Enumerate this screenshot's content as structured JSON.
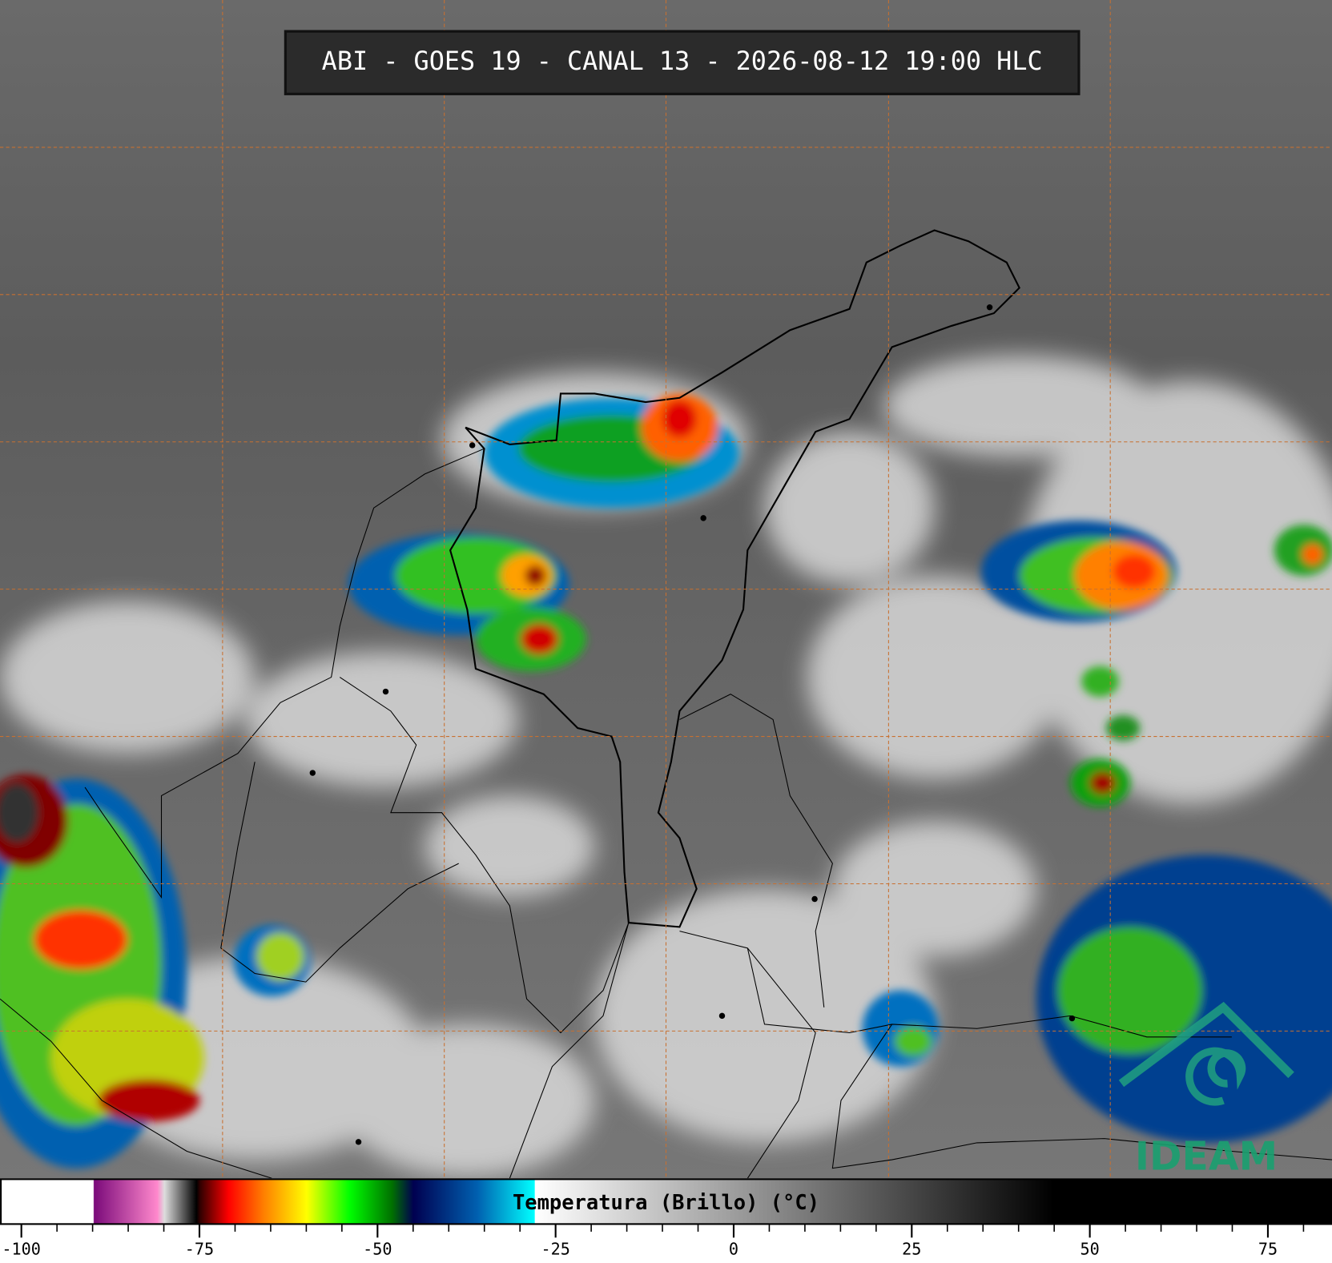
{
  "chart_data": {
    "type": "colorbar",
    "title": "ABI - GOES 19 - CANAL 13 - 2026-08-12 19:00 HLC",
    "colorbar_label": "Temperatura (Brillo) (°C)",
    "logo": "IDEAM",
    "xlim": [
      -103,
      84
    ],
    "xticks": [
      -100,
      -75,
      -50,
      -25,
      0,
      25,
      50,
      75
    ],
    "minor_xticks": [
      -95,
      -90,
      -85,
      -80,
      -70,
      -65,
      -60,
      -55,
      -45,
      -40,
      -35,
      -30,
      -20,
      -15,
      -10,
      -5,
      5,
      10,
      15,
      20,
      30,
      35,
      40,
      45,
      55,
      60,
      65,
      70,
      80
    ],
    "colormap": [
      {
        "value": -103,
        "color": "#ffffff"
      },
      {
        "value": -90,
        "color": "#ffffff"
      },
      {
        "value": -89.9,
        "color": "#7a0a7a"
      },
      {
        "value": -81,
        "color": "#ff88cc"
      },
      {
        "value": -80,
        "color": "#dddddd"
      },
      {
        "value": -75.5,
        "color": "#000000"
      },
      {
        "value": -75,
        "color": "#300000"
      },
      {
        "value": -71,
        "color": "#ff0000"
      },
      {
        "value": -66,
        "color": "#ff8000"
      },
      {
        "value": -60,
        "color": "#ffff00"
      },
      {
        "value": -54,
        "color": "#00ff00"
      },
      {
        "value": -48,
        "color": "#007000"
      },
      {
        "value": -45,
        "color": "#000050"
      },
      {
        "value": -36,
        "color": "#0060b0"
      },
      {
        "value": -28,
        "color": "#00ffff"
      },
      {
        "value": -27.9,
        "color": "#ffffff"
      },
      {
        "value": 45,
        "color": "#000000"
      },
      {
        "value": 84,
        "color": "#000000"
      }
    ],
    "grid_color": "#c87030"
  }
}
